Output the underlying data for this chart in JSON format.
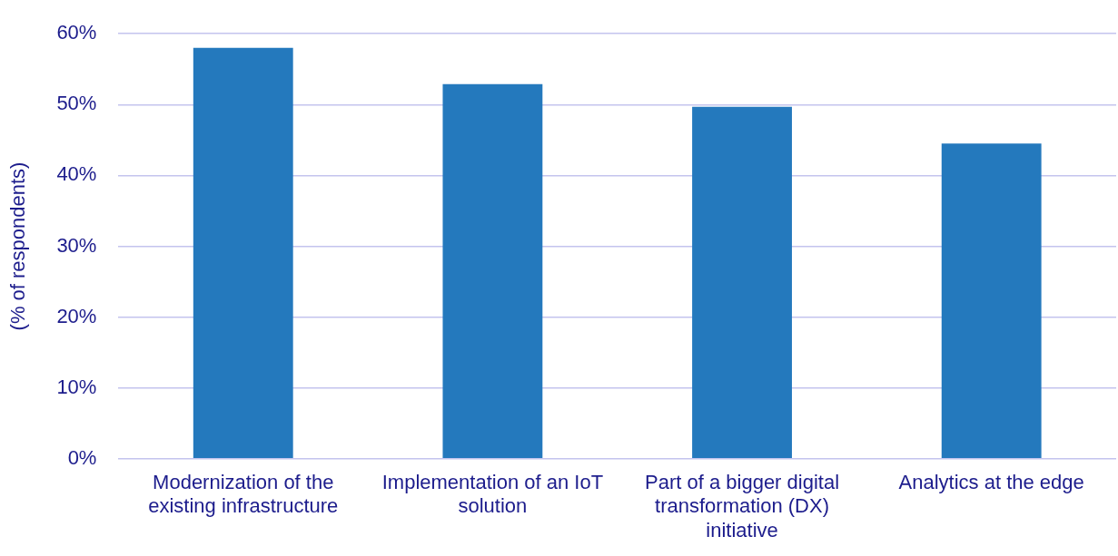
{
  "chart_data": {
    "type": "bar",
    "ylabel": "(% of respondents)",
    "categories": [
      "Modernization of the existing infrastructure",
      "Implementation of an IoT solution",
      "Part of a bigger digital transformation (DX) initiative",
      "Analytics at the edge"
    ],
    "values": [
      58,
      52.9,
      49.7,
      44.5
    ],
    "color": "#2479bd",
    "ylim": [
      0,
      60
    ],
    "yticks": [
      {
        "value": 0,
        "label": "0%"
      },
      {
        "value": 10,
        "label": "10%"
      },
      {
        "value": 20,
        "label": "20%"
      },
      {
        "value": 30,
        "label": "30%"
      },
      {
        "value": 40,
        "label": "40%"
      },
      {
        "value": 50,
        "label": "50%"
      },
      {
        "value": 60,
        "label": "60%"
      }
    ],
    "grid": "y",
    "legend": false
  }
}
